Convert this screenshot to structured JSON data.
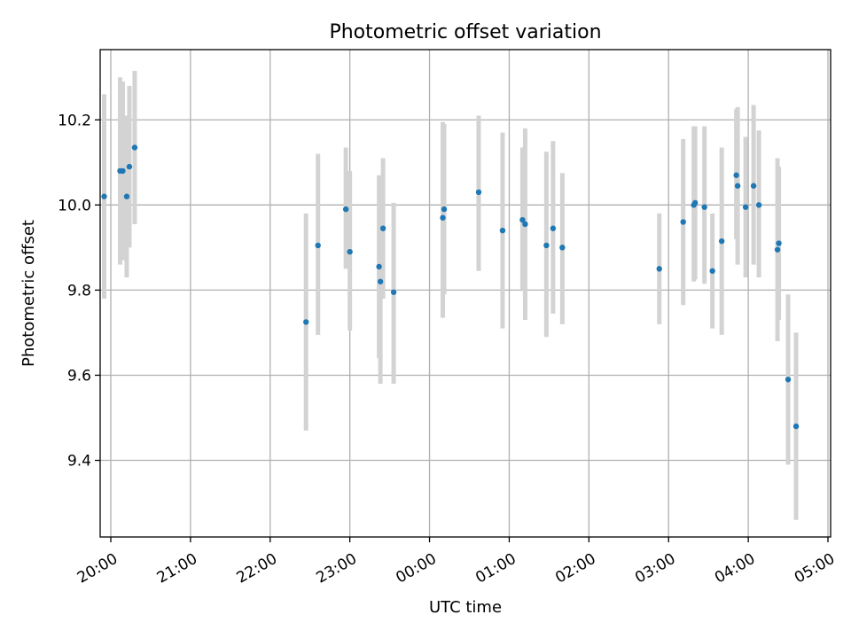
{
  "chart_data": {
    "type": "scatter",
    "title": "Photometric offset variation",
    "xlabel": "UTC time",
    "ylabel": "Photometric offset",
    "xlim": [
      "19:52",
      "05:02"
    ],
    "ylim": [
      9.22,
      10.365
    ],
    "x_ticks": [
      "20:00",
      "21:00",
      "22:00",
      "23:00",
      "00:00",
      "01:00",
      "02:00",
      "03:00",
      "04:00",
      "05:00"
    ],
    "y_ticks": [
      "9.4",
      "9.6",
      "9.8",
      "10.0",
      "10.2"
    ],
    "y_tick_values": [
      9.4,
      9.6,
      9.8,
      10.0,
      10.2
    ],
    "grid": true,
    "marker_color": "#1f77b4",
    "errorbar_color": "#d3d3d3",
    "points": [
      {
        "t": "19:55",
        "y": 10.02,
        "lo": 9.78,
        "hi": 10.26
      },
      {
        "t": "20:07",
        "y": 10.08,
        "lo": 9.86,
        "hi": 10.3
      },
      {
        "t": "20:09",
        "y": 10.08,
        "lo": 9.87,
        "hi": 10.29
      },
      {
        "t": "20:12",
        "y": 10.02,
        "lo": 9.83,
        "hi": 10.21
      },
      {
        "t": "20:14",
        "y": 10.09,
        "lo": 9.9,
        "hi": 10.28
      },
      {
        "t": "20:18",
        "y": 10.135,
        "lo": 9.955,
        "hi": 10.315
      },
      {
        "t": "22:27",
        "y": 9.725,
        "lo": 9.47,
        "hi": 9.98
      },
      {
        "t": "22:36",
        "y": 9.905,
        "lo": 9.695,
        "hi": 10.12
      },
      {
        "t": "22:57",
        "y": 9.99,
        "lo": 9.85,
        "hi": 10.135
      },
      {
        "t": "23:00",
        "y": 9.89,
        "lo": 9.705,
        "hi": 10.08
      },
      {
        "t": "23:22",
        "y": 9.855,
        "lo": 9.64,
        "hi": 10.07
      },
      {
        "t": "23:23",
        "y": 9.82,
        "lo": 9.58,
        "hi": 10.06
      },
      {
        "t": "23:25",
        "y": 9.945,
        "lo": 9.78,
        "hi": 10.11
      },
      {
        "t": "23:33",
        "y": 9.795,
        "lo": 9.58,
        "hi": 10.005
      },
      {
        "t": "00:10",
        "y": 9.97,
        "lo": 9.735,
        "hi": 10.195
      },
      {
        "t": "00:11",
        "y": 9.99,
        "lo": 9.79,
        "hi": 10.19
      },
      {
        "t": "00:37",
        "y": 10.03,
        "lo": 9.845,
        "hi": 10.21
      },
      {
        "t": "00:55",
        "y": 9.94,
        "lo": 9.71,
        "hi": 10.17
      },
      {
        "t": "01:10",
        "y": 9.965,
        "lo": 9.8,
        "hi": 10.135
      },
      {
        "t": "01:12",
        "y": 9.955,
        "lo": 9.73,
        "hi": 10.18
      },
      {
        "t": "01:28",
        "y": 9.905,
        "lo": 9.69,
        "hi": 10.125
      },
      {
        "t": "01:33",
        "y": 9.945,
        "lo": 9.745,
        "hi": 10.15
      },
      {
        "t": "01:40",
        "y": 9.9,
        "lo": 9.72,
        "hi": 10.075
      },
      {
        "t": "02:53",
        "y": 9.85,
        "lo": 9.72,
        "hi": 9.98
      },
      {
        "t": "03:11",
        "y": 9.96,
        "lo": 9.765,
        "hi": 10.155
      },
      {
        "t": "03:19",
        "y": 10.0,
        "lo": 9.82,
        "hi": 10.185
      },
      {
        "t": "03:20",
        "y": 10.005,
        "lo": 9.825,
        "hi": 10.185
      },
      {
        "t": "03:27",
        "y": 9.995,
        "lo": 9.815,
        "hi": 10.185
      },
      {
        "t": "03:33",
        "y": 9.845,
        "lo": 9.71,
        "hi": 9.98
      },
      {
        "t": "03:40",
        "y": 9.915,
        "lo": 9.695,
        "hi": 10.135
      },
      {
        "t": "03:51",
        "y": 10.07,
        "lo": 9.92,
        "hi": 10.225
      },
      {
        "t": "03:52",
        "y": 10.045,
        "lo": 9.86,
        "hi": 10.23
      },
      {
        "t": "03:58",
        "y": 9.995,
        "lo": 9.83,
        "hi": 10.16
      },
      {
        "t": "04:04",
        "y": 10.045,
        "lo": 9.86,
        "hi": 10.235
      },
      {
        "t": "04:08",
        "y": 10.0,
        "lo": 9.83,
        "hi": 10.175
      },
      {
        "t": "04:22",
        "y": 9.895,
        "lo": 9.68,
        "hi": 10.11
      },
      {
        "t": "04:23",
        "y": 9.91,
        "lo": 9.73,
        "hi": 10.09
      },
      {
        "t": "04:30",
        "y": 9.59,
        "lo": 9.39,
        "hi": 9.79
      },
      {
        "t": "04:36",
        "y": 9.48,
        "lo": 9.26,
        "hi": 9.7
      }
    ]
  }
}
